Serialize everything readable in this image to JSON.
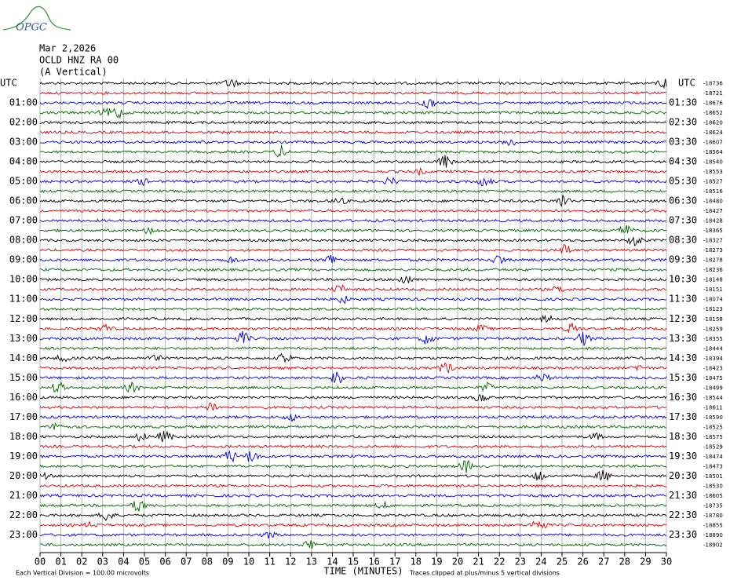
{
  "chart_data": {
    "type": "helicorder",
    "logo": "OPGC",
    "title": "Mar 2,2026",
    "subtitle": "OCLD HNZ RA 00",
    "annotation": "(A Vertical)",
    "y_label_left": "UTC",
    "y_label_right": "UTC",
    "left_labels": [
      "01:00",
      "02:00",
      "03:00",
      "04:00",
      "05:00",
      "06:00",
      "07:00",
      "08:00",
      "09:00",
      "10:00",
      "11:00",
      "12:00",
      "13:00",
      "14:00",
      "15:00",
      "16:00",
      "17:00",
      "18:00",
      "19:00",
      "20:00",
      "21:00",
      "22:00",
      "23:00"
    ],
    "right_labels": [
      "01:30",
      "02:30",
      "03:30",
      "04:30",
      "05:30",
      "06:30",
      "07:30",
      "08:30",
      "09:30",
      "10:30",
      "11:30",
      "12:30",
      "13:30",
      "14:30",
      "15:30",
      "16:30",
      "17:30",
      "18:30",
      "19:30",
      "20:30",
      "21:30",
      "22:30",
      "23:30"
    ],
    "row_offsets": [
      -18736,
      -18721,
      -18676,
      -18652,
      -18620,
      -18624,
      -18607,
      -18564,
      -18540,
      -18553,
      -18527,
      -18516,
      -18480,
      -18427,
      -18428,
      -18365,
      -18327,
      -18273,
      -18278,
      -18236,
      -18148,
      -18151,
      -18074,
      -18123,
      -18158,
      -18259,
      -18355,
      -18444,
      -18394,
      -18423,
      -18475,
      -18499,
      -18544,
      -18611,
      -18590,
      -18525,
      -18575,
      -18529,
      -18474,
      -18473,
      -18501,
      -18530,
      -18605,
      -18735,
      -18780,
      -18855,
      -18890,
      -18902
    ],
    "colors": [
      "#000000",
      "#e00000",
      "#0000e0",
      "#006400"
    ],
    "xlim": [
      0,
      30
    ],
    "xticks": [
      {
        "value": 0,
        "label": "00"
      },
      {
        "value": 1,
        "label": "01"
      },
      {
        "value": 2,
        "label": "02"
      },
      {
        "value": 3,
        "label": "03"
      },
      {
        "value": 4,
        "label": "04"
      },
      {
        "value": 5,
        "label": "05"
      },
      {
        "value": 6,
        "label": "06"
      },
      {
        "value": 7,
        "label": "07"
      },
      {
        "value": 8,
        "label": "08"
      },
      {
        "value": 9,
        "label": "09"
      },
      10,
      11,
      12,
      13,
      14,
      15,
      16,
      17,
      18,
      19,
      20,
      21,
      22,
      23,
      24,
      25,
      26,
      27,
      28,
      29,
      30
    ],
    "x_label": "TIME (MINUTES)",
    "notes": [
      "Each Vertical Division =  100.00 microvolts",
      "Traces clipped at plus/minus 5 vertical divisions"
    ]
  }
}
